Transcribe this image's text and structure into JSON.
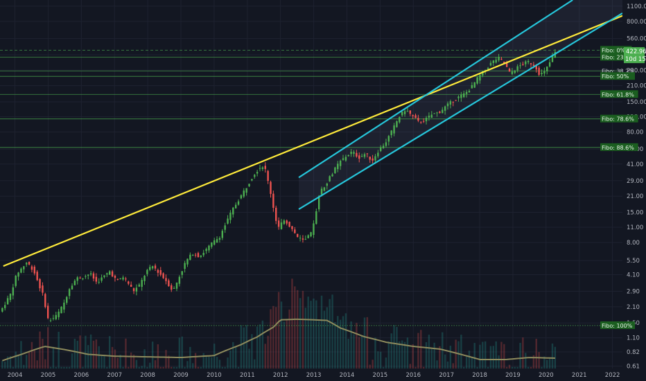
{
  "chart_data": {
    "type": "candlestick",
    "scale": "log",
    "x_ticks": [
      "2004",
      "2005",
      "2006",
      "2007",
      "2008",
      "2009",
      "2010",
      "2011",
      "2012",
      "2013",
      "2014",
      "2015",
      "2016",
      "2017",
      "2018",
      "2019",
      "2020",
      "2021",
      "2022"
    ],
    "y_ticks": [
      "1100.00",
      "800.00",
      "560.00",
      "400.00",
      "290.00",
      "210.00",
      "150.00",
      "110.00",
      "80.00",
      "56.00",
      "41.00",
      "29.00",
      "21.00",
      "15.00",
      "11.00",
      "8.00",
      "5.50",
      "4.10",
      "2.90",
      "2.10",
      "1.50",
      "1.10",
      "0.82",
      "0.61"
    ],
    "ylim": [
      0.58,
      1250
    ],
    "xlim": [
      2003.55,
      2022.3
    ],
    "last_price": "422.96",
    "countdown": "10d 15h",
    "colors": {
      "up": "#26a69a",
      "down": "#ef5350",
      "up_candle": "#4caf50",
      "trend": "#ffeb3b",
      "channel": "#26c6da",
      "fibo": "#4caf50",
      "volume_ma": "#8d8a5c"
    },
    "fibonacci": [
      {
        "label": "Fibo:  0%",
        "value": 440,
        "style": "dashed"
      },
      {
        "label": "Fibo: 23.6%",
        "value": 380,
        "style": "solid"
      },
      {
        "label": "Fibo: 38.2%",
        "value": 285,
        "style": "solid"
      },
      {
        "label": "Fibo:  50%",
        "value": 255,
        "style": "solid"
      },
      {
        "label": "Fibo: 61.8%",
        "value": 175,
        "style": "solid"
      },
      {
        "label": "Fibo: 78.6%",
        "value": 105,
        "style": "solid"
      },
      {
        "label": "Fibo: 88.6%",
        "value": 58,
        "style": "solid"
      },
      {
        "label": "Fibo: 100%",
        "value": 1.42,
        "style": "dotted"
      }
    ],
    "trendline": {
      "start": [
        2003.65,
        4.9
      ],
      "end": [
        2022.3,
        900
      ]
    },
    "channel": {
      "upper_start": [
        2012.55,
        31
      ],
      "upper_end": [
        2020.8,
        1250
      ],
      "lower_start": [
        2012.55,
        16
      ],
      "lower_end": [
        2022.3,
        950
      ]
    },
    "price_anchors": [
      [
        2003.6,
        1.9
      ],
      [
        2003.9,
        2.7
      ],
      [
        2004.1,
        4.2
      ],
      [
        2004.4,
        5.3
      ],
      [
        2004.6,
        4.5
      ],
      [
        2004.9,
        2.6
      ],
      [
        2005.05,
        1.55
      ],
      [
        2005.3,
        1.75
      ],
      [
        2005.5,
        2.2
      ],
      [
        2005.7,
        3.2
      ],
      [
        2005.9,
        3.8
      ],
      [
        2006.1,
        3.9
      ],
      [
        2006.3,
        4.2
      ],
      [
        2006.5,
        3.5
      ],
      [
        2006.7,
        3.9
      ],
      [
        2006.9,
        4.4
      ],
      [
        2007.1,
        3.6
      ],
      [
        2007.3,
        3.9
      ],
      [
        2007.5,
        3.3
      ],
      [
        2007.6,
        2.9
      ],
      [
        2007.8,
        3.3
      ],
      [
        2008.0,
        4.4
      ],
      [
        2008.2,
        4.9
      ],
      [
        2008.4,
        4.2
      ],
      [
        2008.6,
        3.6
      ],
      [
        2008.8,
        2.9
      ],
      [
        2009.0,
        4.0
      ],
      [
        2009.2,
        5.5
      ],
      [
        2009.4,
        6.4
      ],
      [
        2009.6,
        6.0
      ],
      [
        2009.8,
        6.9
      ],
      [
        2010.0,
        8.0
      ],
      [
        2010.2,
        9.0
      ],
      [
        2010.4,
        12
      ],
      [
        2010.6,
        16
      ],
      [
        2010.8,
        20
      ],
      [
        2011.0,
        25
      ],
      [
        2011.2,
        32
      ],
      [
        2011.4,
        38
      ],
      [
        2011.55,
        40
      ],
      [
        2011.75,
        22
      ],
      [
        2011.95,
        10.5
      ],
      [
        2012.15,
        13
      ],
      [
        2012.35,
        11
      ],
      [
        2012.55,
        9
      ],
      [
        2012.75,
        8.2
      ],
      [
        2012.95,
        9.5
      ],
      [
        2013.05,
        12
      ],
      [
        2013.2,
        22
      ],
      [
        2013.4,
        27
      ],
      [
        2013.6,
        34
      ],
      [
        2013.8,
        42
      ],
      [
        2014.0,
        48
      ],
      [
        2014.2,
        53
      ],
      [
        2014.4,
        47
      ],
      [
        2014.6,
        51
      ],
      [
        2014.8,
        44
      ],
      [
        2015.0,
        55
      ],
      [
        2015.2,
        64
      ],
      [
        2015.4,
        82
      ],
      [
        2015.6,
        108
      ],
      [
        2015.8,
        128
      ],
      [
        2016.0,
        112
      ],
      [
        2016.2,
        98
      ],
      [
        2016.4,
        103
      ],
      [
        2016.6,
        115
      ],
      [
        2016.8,
        120
      ],
      [
        2017.0,
        135
      ],
      [
        2017.2,
        150
      ],
      [
        2017.4,
        165
      ],
      [
        2017.6,
        178
      ],
      [
        2017.8,
        205
      ],
      [
        2018.0,
        250
      ],
      [
        2018.2,
        290
      ],
      [
        2018.4,
        340
      ],
      [
        2018.6,
        375
      ],
      [
        2018.8,
        330
      ],
      [
        2018.95,
        270
      ],
      [
        2019.1,
        295
      ],
      [
        2019.3,
        325
      ],
      [
        2019.5,
        345
      ],
      [
        2019.7,
        320
      ],
      [
        2019.85,
        265
      ],
      [
        2020.0,
        280
      ],
      [
        2020.15,
        340
      ],
      [
        2020.3,
        420
      ]
    ],
    "volume_ma_anchors": [
      [
        2003.6,
        0.68
      ],
      [
        2004.2,
        0.78
      ],
      [
        2004.9,
        0.92
      ],
      [
        2005.5,
        0.86
      ],
      [
        2006.2,
        0.78
      ],
      [
        2007.0,
        0.75
      ],
      [
        2008.0,
        0.74
      ],
      [
        2009.0,
        0.73
      ],
      [
        2010.0,
        0.76
      ],
      [
        2010.8,
        0.95
      ],
      [
        2011.3,
        1.12
      ],
      [
        2011.8,
        1.38
      ],
      [
        2012.0,
        1.6
      ],
      [
        2012.5,
        1.62
      ],
      [
        2013.0,
        1.6
      ],
      [
        2013.4,
        1.58
      ],
      [
        2013.8,
        1.35
      ],
      [
        2014.5,
        1.13
      ],
      [
        2015.2,
        1.0
      ],
      [
        2016.0,
        0.92
      ],
      [
        2016.8,
        0.87
      ],
      [
        2017.5,
        0.77
      ],
      [
        2018.0,
        0.7
      ],
      [
        2018.8,
        0.7
      ],
      [
        2019.5,
        0.73
      ],
      [
        2020.3,
        0.72
      ]
    ]
  }
}
